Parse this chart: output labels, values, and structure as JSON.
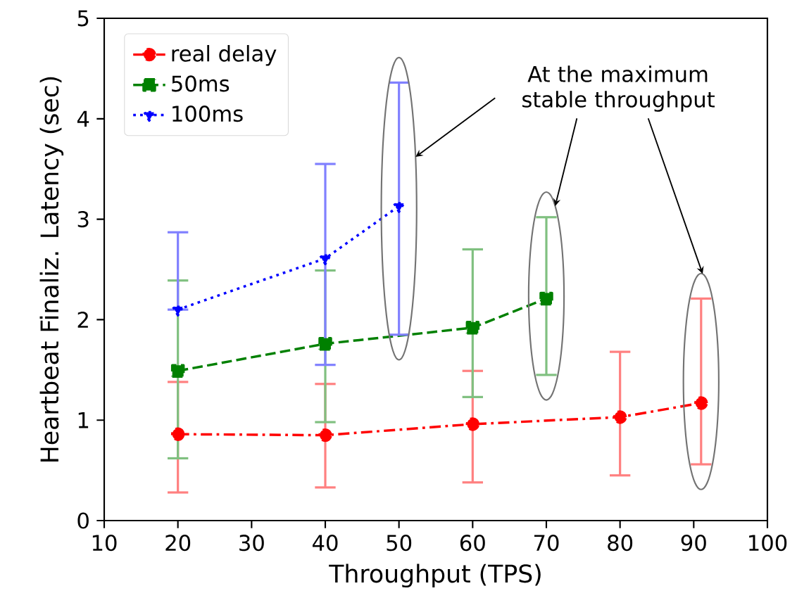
{
  "chart_data": {
    "type": "line",
    "xlabel": "Throughput (TPS)",
    "ylabel": "Heartbeat Finaliz. Latency (sec)",
    "xlim": [
      10,
      100
    ],
    "ylim": [
      0,
      5
    ],
    "xticks": [
      10,
      20,
      30,
      40,
      50,
      60,
      70,
      80,
      90,
      100
    ],
    "yticks": [
      0,
      1,
      2,
      3,
      4,
      5
    ],
    "legend": "top left",
    "grid": false,
    "annotations": [
      "At the maximum stable throughput"
    ],
    "series": [
      {
        "name": "real delay",
        "color": "#ff0000",
        "marker": "circle",
        "line_style": "dashdot",
        "x": [
          20,
          40,
          60,
          80,
          91
        ],
        "values": [
          0.86,
          0.85,
          0.96,
          1.03,
          1.17
        ],
        "errors": [
          [
            0.28,
            1.38
          ],
          [
            0.33,
            1.36
          ],
          [
            0.38,
            1.49
          ],
          [
            0.45,
            1.68
          ],
          [
            0.56,
            2.21
          ]
        ]
      },
      {
        "name": "50ms",
        "color": "#008000",
        "marker": "square",
        "line_style": "dashed",
        "x": [
          20,
          40,
          60,
          70
        ],
        "values": [
          1.49,
          1.76,
          1.92,
          2.21
        ],
        "errors": [
          [
            0.62,
            2.39
          ],
          [
            0.98,
            2.49
          ],
          [
            1.23,
            2.7
          ],
          [
            1.45,
            3.02
          ]
        ]
      },
      {
        "name": "100ms",
        "color": "#0000ff",
        "marker": "triangle_down",
        "line_style": "dotted",
        "x": [
          20,
          40,
          50
        ],
        "values": [
          2.1,
          2.61,
          3.13
        ],
        "errors": [
          [
            2.1,
            2.87
          ],
          [
            1.55,
            3.55
          ],
          [
            1.85,
            4.36
          ]
        ]
      }
    ]
  }
}
